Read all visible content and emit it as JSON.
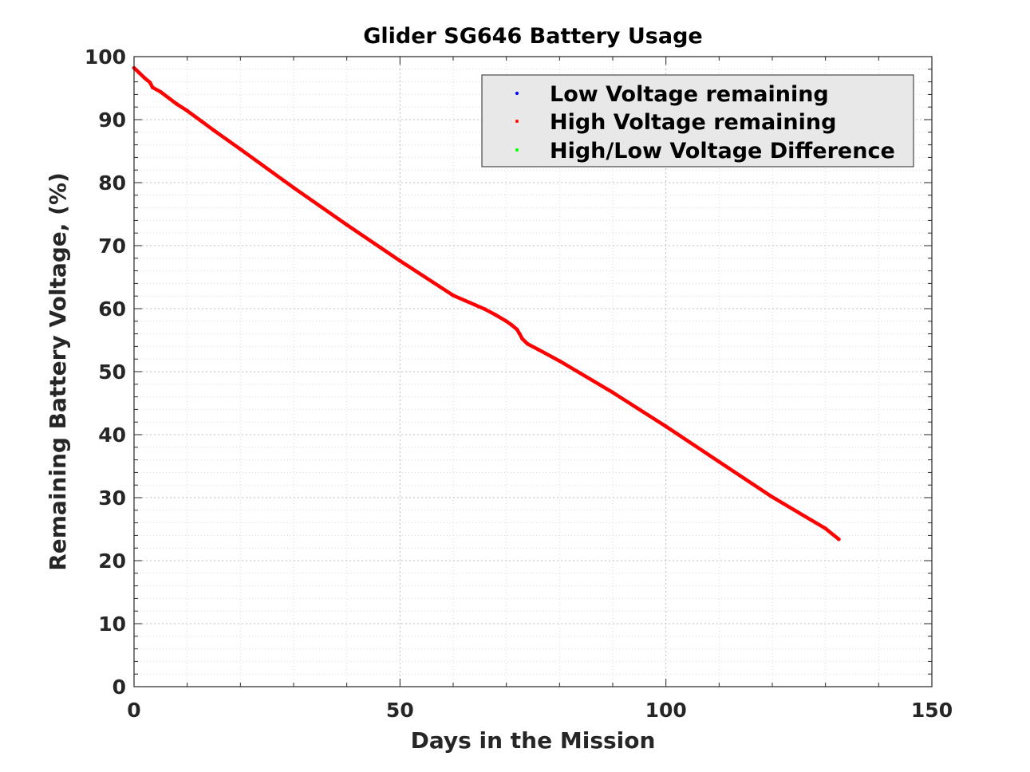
{
  "chart_data": {
    "type": "scatter",
    "title": "Glider SG646 Battery Usage",
    "xlabel": "Days in the Mission",
    "ylabel": "Remaining Battery Voltage, (%)",
    "xlim": [
      0,
      150
    ],
    "ylim": [
      0,
      100
    ],
    "xticks": [
      0,
      50,
      100,
      150
    ],
    "yticks": [
      0,
      10,
      20,
      30,
      40,
      50,
      60,
      70,
      80,
      90,
      100
    ],
    "x_minor_step": 10,
    "y_minor_step": 2,
    "grid": true,
    "legend_position": "top-right",
    "legend": [
      {
        "label": "Low Voltage remaining",
        "color": "#0000ff"
      },
      {
        "label": "High Voltage remaining",
        "color": "#ff0000"
      },
      {
        "label": "High/Low Voltage Difference",
        "color": "#00ff00"
      }
    ],
    "series": [
      {
        "name": "High Voltage remaining",
        "color": "#ff0000",
        "x": [
          0,
          1,
          2,
          3,
          3.5,
          5,
          8,
          10,
          15,
          20,
          30,
          40,
          50,
          60,
          66,
          68,
          70,
          71,
          72,
          72.5,
          73,
          74,
          76,
          80,
          90,
          100,
          110,
          120,
          130,
          132.5
        ],
        "y": [
          98.2,
          97.4,
          96.6,
          95.9,
          95.1,
          94.4,
          92.5,
          91.4,
          88.3,
          85.3,
          79.2,
          73.3,
          67.6,
          62.1,
          59.9,
          59.0,
          58.0,
          57.4,
          56.7,
          56.0,
          55.2,
          54.4,
          53.5,
          51.7,
          46.7,
          41.3,
          35.7,
          30.1,
          25.1,
          23.4
        ]
      }
    ]
  }
}
